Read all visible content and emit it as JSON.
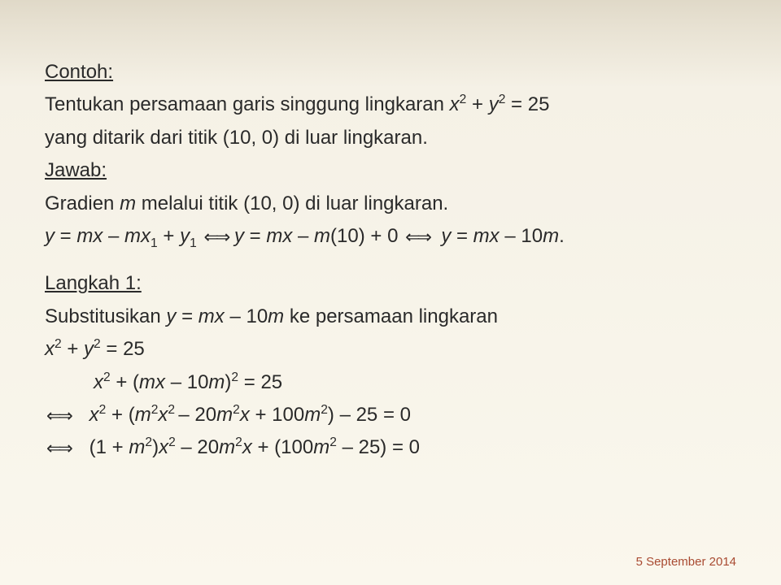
{
  "heading1": "Contoh:",
  "l1a": "Tentukan persamaan garis singgung lingkaran ",
  "l1b": " = 25",
  "l2": "yang ditarik dari titik (10, 0) di luar lingkaran.",
  "heading2": "Jawab:",
  "l3a": "Gradien ",
  "l3b": " melalui titik (10, 0) di luar lingkaran.",
  "l4a": " – ",
  "l4b": " + ",
  "l4c": " – ",
  "l4d": "(10) + 0 ",
  "l4e": " – 10",
  "heading3": "Langkah 1:",
  "l5a": "Substitusikan ",
  "l5b": " – 10",
  "l5c": " ke persamaan lingkaran",
  "l6": " = 25",
  "l7a": " + (",
  "l7b": " – 10",
  "l7c": ")",
  "l7d": " = 25",
  "l8a": " + (",
  "l8b": " – 20",
  "l8c": " + 100",
  "l8d": ") – 25 = 0",
  "l9a": "(1 + ",
  "l9b": ")",
  "l9c": " – 20",
  "l9d": " + (100",
  "l9e": " – 25) = 0",
  "date": "5 September 2014",
  "vars": {
    "x": "x",
    "y": "y",
    "m": "m",
    "eq": " = ",
    "dot": "."
  }
}
